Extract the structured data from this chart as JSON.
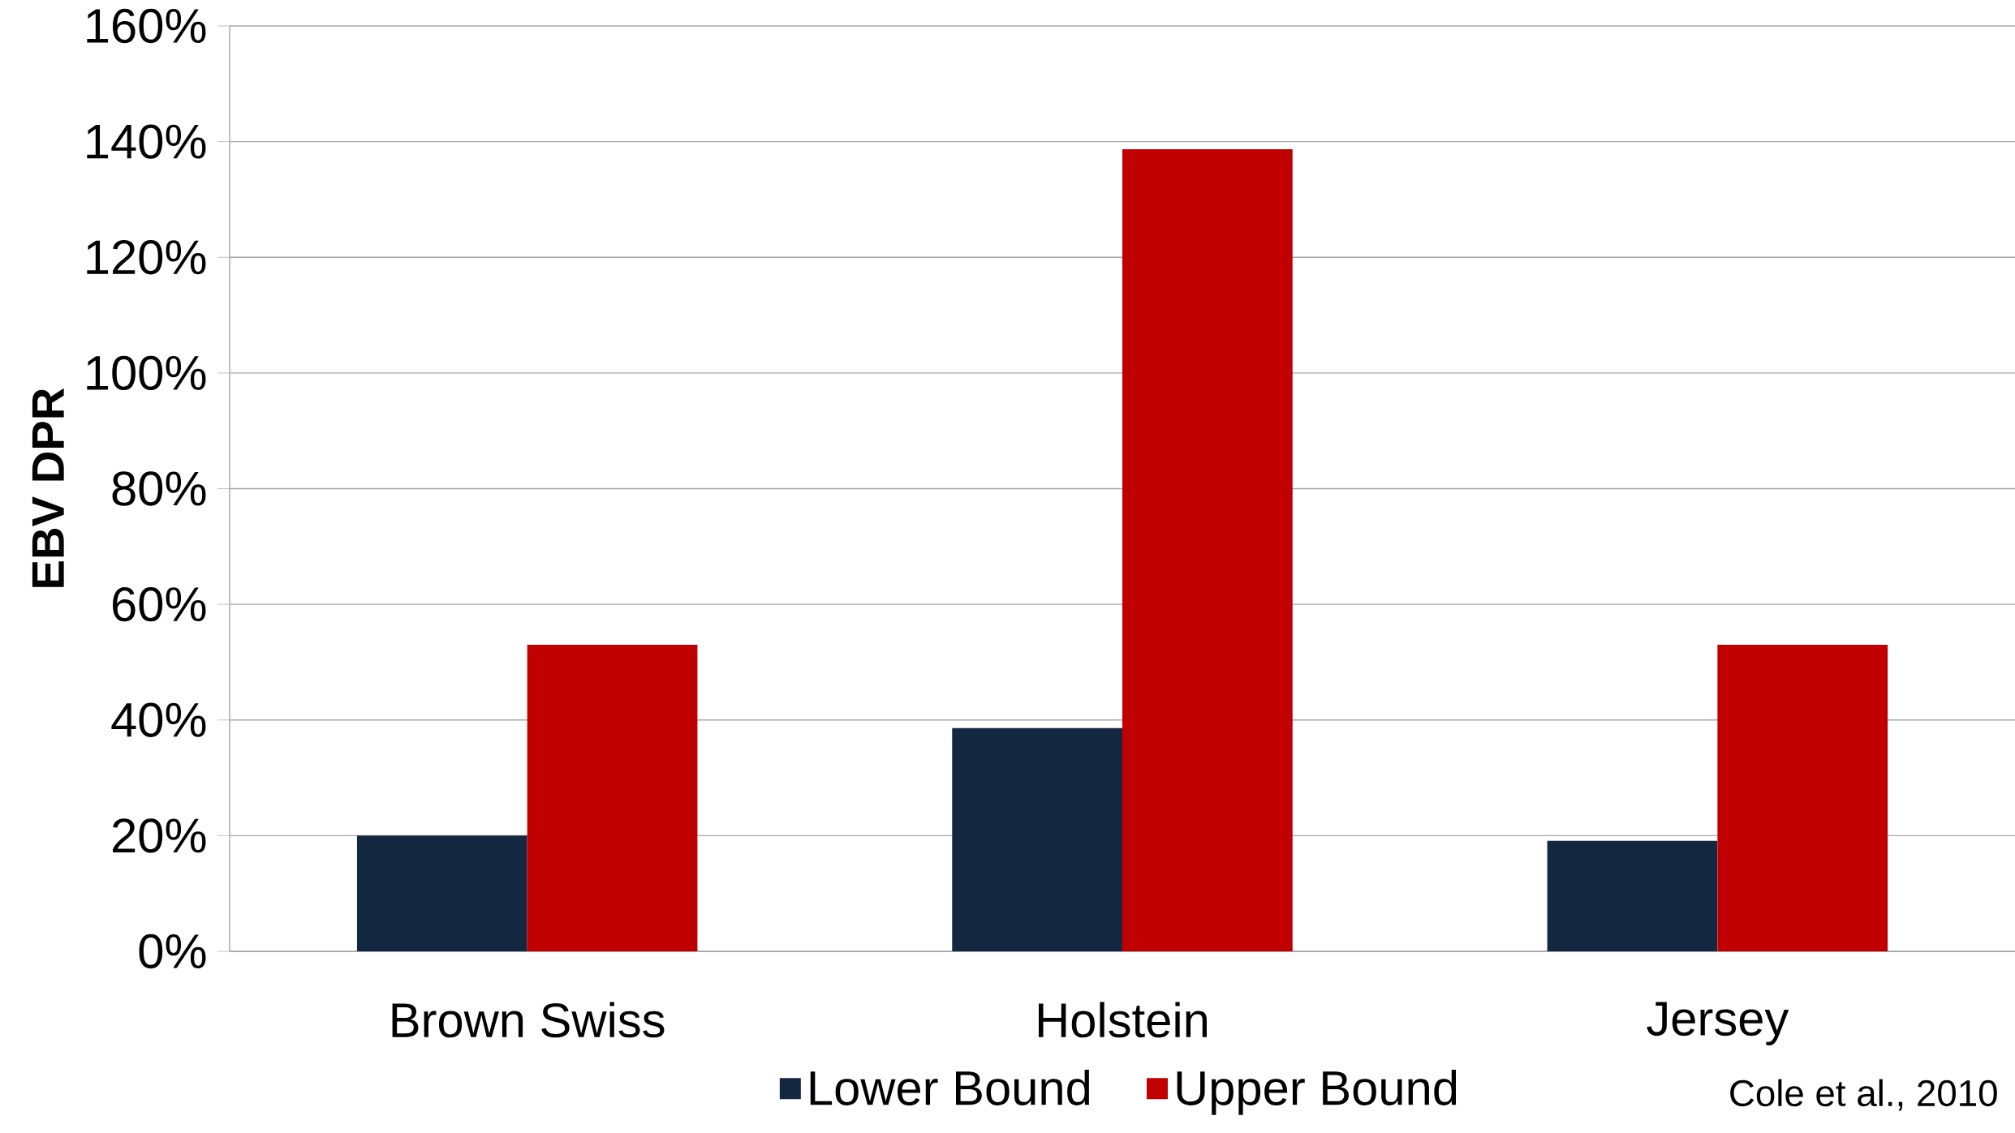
{
  "chart_data": {
    "type": "bar",
    "ylabel": "EBV DPR",
    "categories": [
      "Brown Swiss",
      "Holstein",
      "Jersey"
    ],
    "series": [
      {
        "name": "Lower Bound",
        "color": "#132741",
        "values": [
          20,
          38.6,
          19.1
        ]
      },
      {
        "name": "Upper Bound",
        "color": "#c00000",
        "values": [
          53,
          138.7,
          53
        ]
      }
    ],
    "ylim": [
      0,
      160
    ],
    "yticks": [
      {
        "value": 0,
        "label": "0%"
      },
      {
        "value": 20,
        "label": "20%"
      },
      {
        "value": 40,
        "label": "40%"
      },
      {
        "value": 60,
        "label": "60%"
      },
      {
        "value": 80,
        "label": "80%"
      },
      {
        "value": 100,
        "label": "100%"
      },
      {
        "value": 120,
        "label": "120%"
      },
      {
        "value": 140,
        "label": "140%"
      },
      {
        "value": 160,
        "label": "160%"
      }
    ],
    "grid": "y",
    "legend": "bottom",
    "annotations": [
      "Cole et al., 2010"
    ]
  }
}
